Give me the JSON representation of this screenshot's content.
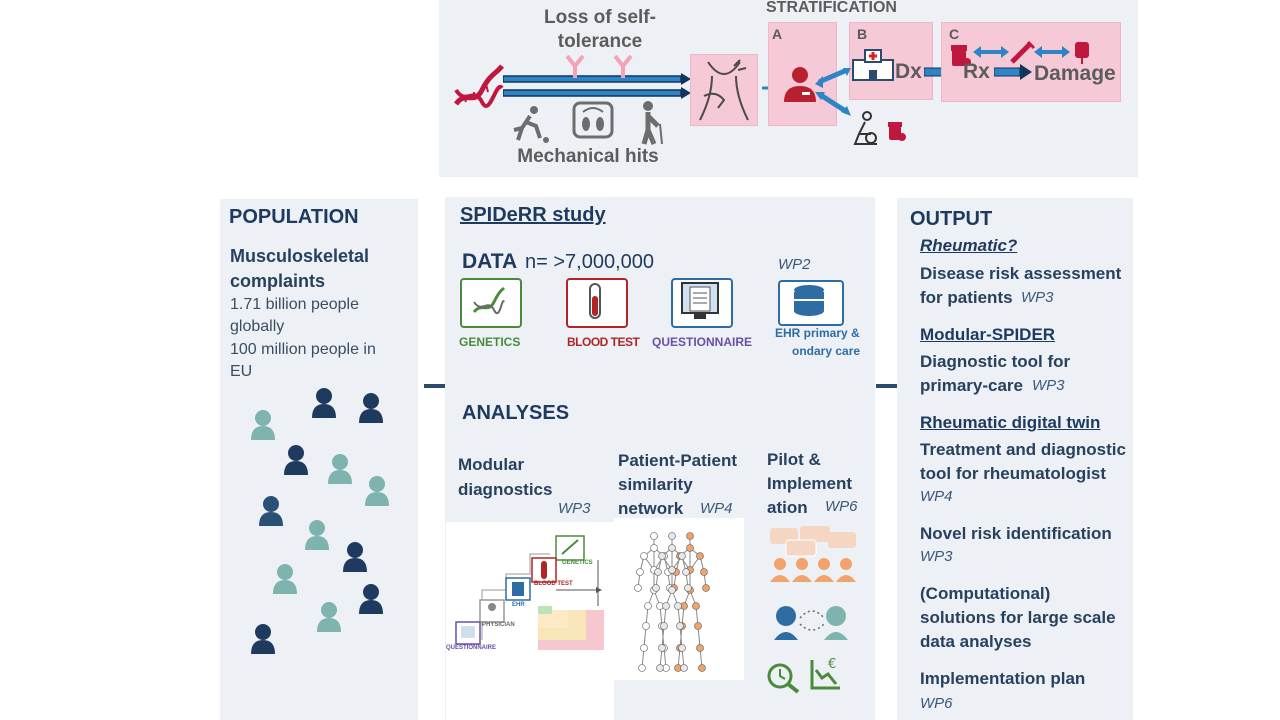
{
  "top": {
    "loss_label": "Loss of self-\ntolerance",
    "mech_label": "Mechanical hits",
    "stratification": "STRATIFICATION",
    "box_a": "A",
    "box_b": "B",
    "box_c": "C",
    "dx": "Dx",
    "rx": "Rx",
    "damage": "Damage"
  },
  "population": {
    "title": "POPULATION",
    "subtitle": "Musculoskeletal complaints",
    "line1": "1.71 billion people globally",
    "line2": "100 million people in EU"
  },
  "study": {
    "title": "SPIDeRR study",
    "data_label": "DATA",
    "n_label": "n= >7,000,000",
    "wp2": "WP2",
    "genetics": "GENETICS",
    "blood_test": "BLOOD TEST",
    "questionnaire": "QUESTIONNAIRE",
    "ehr": "EHR primary &",
    "ehr2": "ondary care",
    "analyses": "ANALYSES",
    "modular_title": "Modular diagnostics",
    "modular_wp": "WP3",
    "patient_title": "Patient-Patient similarity network",
    "patient_wp": "WP4",
    "pilot_title": "Pilot & Implement ation",
    "pilot_wp": "WP6",
    "diag_genetics": "GENETICS",
    "diag_blood": "BLOOD TEST",
    "diag_ehr": "EHR",
    "diag_physician": "PHYSICIAN",
    "diag_questionnaire": "QUESTIONNAIRE"
  },
  "output": {
    "title": "OUTPUT",
    "rheumatic_q": "Rheumatic?",
    "risk_text": "Disease risk assessment for patients",
    "risk_wp": "WP3",
    "modular": "Modular-SPIDER",
    "modular_text": "Diagnostic tool for primary-care",
    "modular_wp": "WP3",
    "twin": "Rheumatic digital twin",
    "twin_text": "Treatment and diagnostic tool for rheumatologist",
    "twin_wp": "WP4",
    "novel": "Novel risk identification",
    "novel_wp": "WP3",
    "comp": "(Computational) solutions for large scale data analyses",
    "impl": "Implementation plan",
    "impl_wp": "WP6"
  },
  "colors": {
    "panel": "#edf1f5",
    "navy": "#1f3a5f",
    "pink": "#f5c9d6",
    "teal": "#7fb3ad",
    "genetics": "#4a8b3b",
    "blood": "#b02525",
    "questionnaire": "#6a4fa3",
    "ehr": "#2e6da4"
  }
}
